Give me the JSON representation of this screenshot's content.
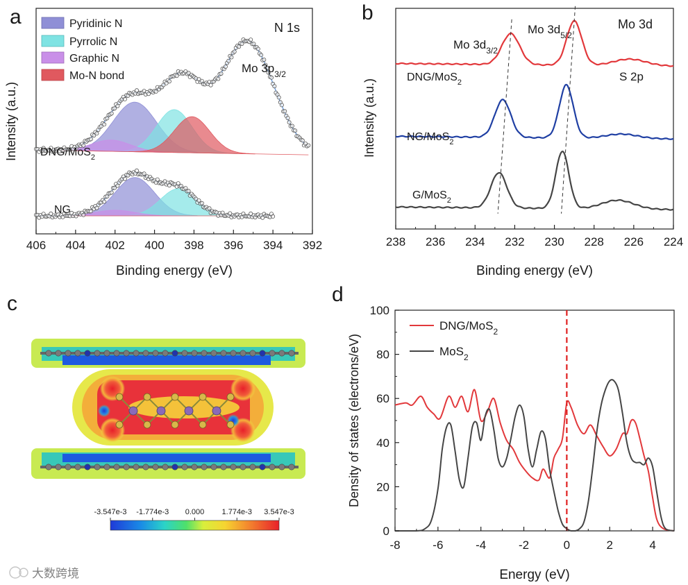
{
  "colors": {
    "pyridinic": "#8f8fd6",
    "pyrrolic": "#7fe3e3",
    "graphic": "#c98fe8",
    "mon": "#e0595f",
    "envelope": "#5b8fd6",
    "curve_red": "#e2383b",
    "curve_blue": "#1f3fa3",
    "curve_gray": "#454545",
    "fermi": "#e02020"
  },
  "panel_labels": {
    "a": "a",
    "b": "b",
    "c": "c",
    "d": "d"
  },
  "watermark": "大数跨境",
  "chart_data": [
    {
      "id": "a",
      "type": "line",
      "title": "N 1s",
      "xlabel": "Binding energy (eV)",
      "ylabel": "Intensity (a.u.)",
      "xlim": [
        406,
        392
      ],
      "xticks": [
        "406",
        "404",
        "402",
        "400",
        "398",
        "396",
        "394",
        "392"
      ],
      "legend": [
        "Pyridinic N",
        "Pyrrolic N",
        "Graphic N",
        "Mo-N bond"
      ],
      "annotation_main": "Mo 3p",
      "annotation_sub": "3/2",
      "series_labels": [
        {
          "main": "DNG/MoS",
          "sub": "2"
        },
        {
          "main": "NG",
          "sub": ""
        }
      ],
      "series": [
        {
          "name": "DNG/MoS2",
          "base": 0.35,
          "components": [
            {
              "name": "Pyridinic N",
              "center": 401.0,
              "width": 1.1,
              "height": 0.22
            },
            {
              "name": "Pyrrolic N",
              "center": 399.0,
              "width": 0.9,
              "height": 0.19
            },
            {
              "name": "Graphic N",
              "center": 402.2,
              "width": 1.0,
              "height": 0.05
            },
            {
              "name": "Mo-N bond",
              "center": 398.1,
              "width": 0.9,
              "height": 0.16
            },
            {
              "name": "Mo 3p3/2",
              "center": 395.3,
              "width": 1.35,
              "height": 0.5
            }
          ]
        },
        {
          "name": "NG",
          "base": 0.08,
          "components": [
            {
              "name": "Pyridinic N",
              "center": 401.0,
              "width": 1.0,
              "height": 0.17
            },
            {
              "name": "Pyrrolic N",
              "center": 398.8,
              "width": 0.9,
              "height": 0.12
            },
            {
              "name": "Graphic N",
              "center": 402.0,
              "width": 1.0,
              "height": 0.025
            }
          ]
        }
      ]
    },
    {
      "id": "b",
      "type": "line",
      "title": "Mo 3d",
      "xlabel": "Binding energy (eV)",
      "ylabel": "Intensity (a.u.)",
      "xlim": [
        238,
        224
      ],
      "xticks": [
        "238",
        "236",
        "234",
        "232",
        "230",
        "228",
        "226",
        "224"
      ],
      "annotations": [
        {
          "main": "Mo 3d",
          "sub": "3/2"
        },
        {
          "main": "Mo 3d",
          "sub": "5/2"
        },
        {
          "main": "S 2p",
          "sub": ""
        }
      ],
      "series": [
        {
          "name": "DNG/MoS2",
          "label_main": "DNG/MoS",
          "label_sub": "2",
          "color": "red",
          "base": 0.75,
          "peaks": [
            {
              "center": 232.2,
              "height": 0.14,
              "width": 0.45
            },
            {
              "center": 229.0,
              "height": 0.2,
              "width": 0.38
            },
            {
              "center": 226.2,
              "height": 0.03,
              "width": 0.8
            }
          ]
        },
        {
          "name": "NG/MoS2",
          "label_main": "NG/MoS",
          "label_sub": "2",
          "color": "blue",
          "base": 0.42,
          "peaks": [
            {
              "center": 232.6,
              "height": 0.17,
              "width": 0.4
            },
            {
              "center": 229.4,
              "height": 0.24,
              "width": 0.35
            },
            {
              "center": 226.6,
              "height": 0.02,
              "width": 0.8
            }
          ]
        },
        {
          "name": "G/MoS2",
          "label_main": "G/MoS",
          "label_sub": "2",
          "color": "gray",
          "base": 0.1,
          "peaks": [
            {
              "center": 232.8,
              "height": 0.16,
              "width": 0.4
            },
            {
              "center": 229.6,
              "height": 0.26,
              "width": 0.33
            },
            {
              "center": 226.8,
              "height": 0.04,
              "width": 0.8
            }
          ]
        }
      ]
    },
    {
      "id": "c",
      "type": "heatmap",
      "colorbar_ticks": [
        "-3.547e-3",
        "-1.774e-3",
        "0.000",
        "1.774e-3",
        "3.547e-3"
      ],
      "colorbar_range": [
        -0.003547,
        0.003547
      ]
    },
    {
      "id": "d",
      "type": "line",
      "xlabel": "Energy (eV)",
      "ylabel": "Density of states (electrons/eV)",
      "xlim": [
        -8,
        5
      ],
      "ylim": [
        0,
        100
      ],
      "xticks": [
        -8,
        -6,
        -4,
        -2,
        0,
        2,
        4
      ],
      "yticks": [
        0,
        20,
        40,
        60,
        80,
        100
      ],
      "fermi_level": 0,
      "series": [
        {
          "name": "DNG/MoS2",
          "label_main": "DNG/MoS",
          "label_sub": "2",
          "color": "red",
          "x": [
            -8,
            -7.5,
            -7.2,
            -6.8,
            -6.5,
            -6.2,
            -5.9,
            -5.5,
            -5.2,
            -4.9,
            -4.6,
            -4.3,
            -4.0,
            -3.7,
            -3.4,
            -3.1,
            -2.8,
            -2.5,
            -2.2,
            -1.9,
            -1.6,
            -1.3,
            -1.1,
            -0.8,
            -0.6,
            -0.4,
            -0.2,
            0,
            0.2,
            0.5,
            0.8,
            1.1,
            1.4,
            1.7,
            2.0,
            2.3,
            2.6,
            2.8,
            3.0,
            3.2,
            3.4,
            3.6,
            3.8,
            4.0,
            4.2,
            4.5,
            5.0
          ],
          "y": [
            57,
            58,
            57,
            61,
            56,
            53,
            51,
            61,
            56,
            61,
            54,
            64,
            50,
            54,
            60,
            49,
            41,
            37,
            31,
            27,
            24,
            23,
            28,
            24,
            33,
            37,
            42,
            58,
            56,
            48,
            44,
            48,
            43,
            38,
            34,
            37,
            44,
            44,
            50,
            49,
            42,
            34,
            27,
            15,
            5,
            1,
            0
          ]
        },
        {
          "name": "MoS2",
          "label_main": "MoS",
          "label_sub": "2",
          "color": "gray",
          "x": [
            -8,
            -7,
            -6.6,
            -6.3,
            -6.0,
            -5.8,
            -5.6,
            -5.4,
            -5.2,
            -5.0,
            -4.8,
            -4.6,
            -4.4,
            -4.2,
            -4.0,
            -3.8,
            -3.6,
            -3.4,
            -3.2,
            -3.0,
            -2.8,
            -2.6,
            -2.4,
            -2.2,
            -2.0,
            -1.8,
            -1.6,
            -1.4,
            -1.2,
            -1.0,
            -0.8,
            -0.6,
            -0.4,
            -0.2,
            0.0,
            0.2,
            0.4,
            0.6,
            0.8,
            1.0,
            1.2,
            1.4,
            1.6,
            1.8,
            2.0,
            2.2,
            2.4,
            2.6,
            2.8,
            3.0,
            3.2,
            3.4,
            3.6,
            3.8,
            4.0,
            4.2,
            4.4,
            4.6,
            5.0
          ],
          "y": [
            0,
            0,
            1,
            5,
            19,
            37,
            47,
            48,
            36,
            23,
            20,
            33,
            47,
            49,
            41,
            52,
            55,
            46,
            33,
            29,
            33,
            42,
            52,
            57,
            52,
            37,
            29,
            37,
            45,
            42,
            28,
            18,
            9,
            3,
            1,
            0,
            0,
            1,
            4,
            13,
            28,
            45,
            57,
            64,
            68,
            68,
            64,
            53,
            40,
            33,
            31,
            31,
            30,
            33,
            29,
            17,
            6,
            1,
            0
          ]
        }
      ]
    }
  ]
}
